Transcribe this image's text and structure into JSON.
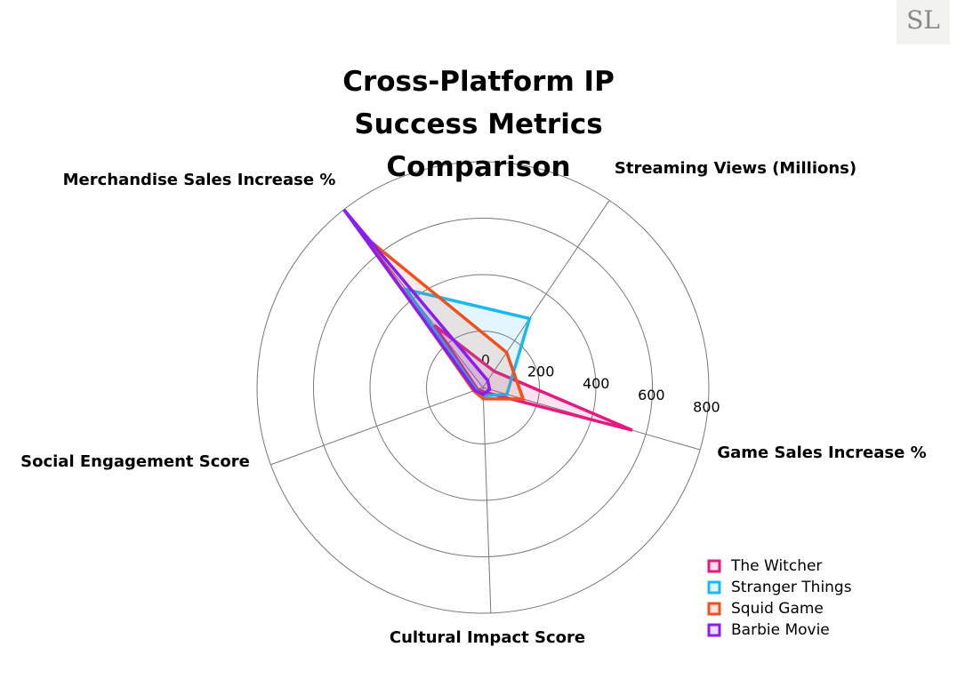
{
  "logo": "SL",
  "chart_data": {
    "type": "radar",
    "title": "Cross-Platform IP Success Metrics Comparison",
    "categories": [
      "Streaming Views (Millions)",
      "Game Sales Increase %",
      "Cultural Impact Score",
      "Social Engagement Score",
      "Merchandise Sales Increase %"
    ],
    "series": [
      {
        "name": "The Witcher",
        "color": "#e6197e",
        "values": [
          70,
          550,
          15,
          20,
          280
        ]
      },
      {
        "name": "Stranger Things",
        "color": "#1ab8f0",
        "values": [
          295,
          88,
          30,
          25,
          441
        ]
      },
      {
        "name": "Squid Game",
        "color": "#f0501e",
        "values": [
          150,
          148,
          40,
          35,
          675
        ]
      },
      {
        "name": "Barbie Movie",
        "color": "#8a1ef0",
        "values": [
          30,
          25,
          25,
          30,
          800
        ]
      }
    ],
    "rlim": [
      0,
      800
    ],
    "rticks": [
      0,
      200,
      400,
      600,
      800
    ],
    "grid": true
  }
}
